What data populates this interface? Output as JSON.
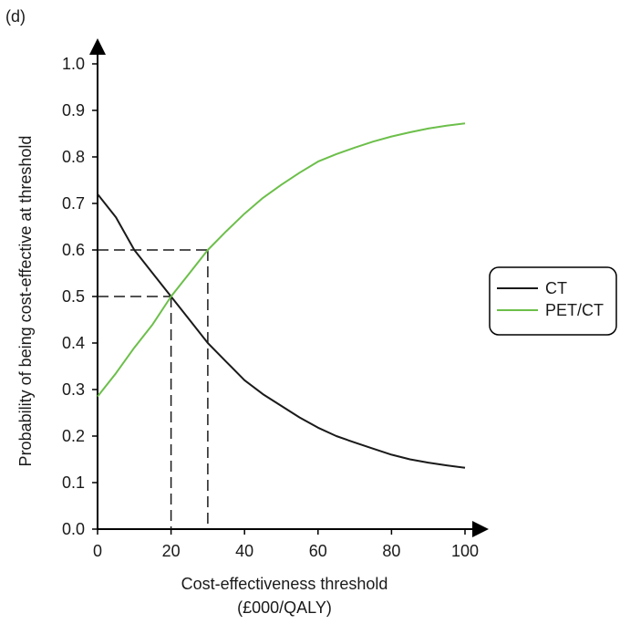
{
  "panel_label": "(d)",
  "colors": {
    "CT": "#1a1a1a",
    "PET/CT": "#6cbf4a",
    "axis": "#000000",
    "guide": "#1a1a1a"
  },
  "chart_data": {
    "type": "line",
    "title": "",
    "xlabel_line1": "Cost-effectiveness threshold",
    "xlabel_line2": "(£000/QALY)",
    "ylabel": "Probability of being cost-effective at threshold",
    "xlim": [
      0,
      100
    ],
    "ylim": [
      0,
      1.0
    ],
    "x_ticks": [
      "0",
      "20",
      "40",
      "60",
      "80",
      "100"
    ],
    "x_tick_values": [
      0,
      20,
      40,
      60,
      80,
      100
    ],
    "y_ticks": [
      "0.0",
      "0.1",
      "0.2",
      "0.3",
      "0.4",
      "0.5",
      "0.6",
      "0.7",
      "0.8",
      "0.9",
      "1.0"
    ],
    "y_tick_values": [
      0,
      0.1,
      0.2,
      0.3,
      0.4,
      0.5,
      0.6,
      0.7,
      0.8,
      0.9,
      1.0
    ],
    "grid": false,
    "legend_position": "right",
    "x": [
      0,
      5,
      10,
      15,
      20,
      25,
      30,
      35,
      40,
      45,
      50,
      55,
      60,
      65,
      70,
      75,
      80,
      85,
      90,
      95,
      100
    ],
    "series": [
      {
        "name": "CT",
        "values": [
          0.72,
          0.67,
          0.6,
          0.55,
          0.5,
          0.45,
          0.4,
          0.36,
          0.32,
          0.29,
          0.265,
          0.24,
          0.218,
          0.2,
          0.186,
          0.173,
          0.16,
          0.15,
          0.143,
          0.137,
          0.132
        ]
      },
      {
        "name": "PET/CT",
        "values": [
          0.285,
          0.335,
          0.39,
          0.44,
          0.5,
          0.55,
          0.6,
          0.64,
          0.678,
          0.712,
          0.74,
          0.766,
          0.79,
          0.806,
          0.82,
          0.833,
          0.844,
          0.853,
          0.861,
          0.867,
          0.872
        ]
      }
    ],
    "reference_lines": [
      {
        "x": 20,
        "y": 0.5
      },
      {
        "x": 30,
        "y": 0.6
      }
    ]
  }
}
